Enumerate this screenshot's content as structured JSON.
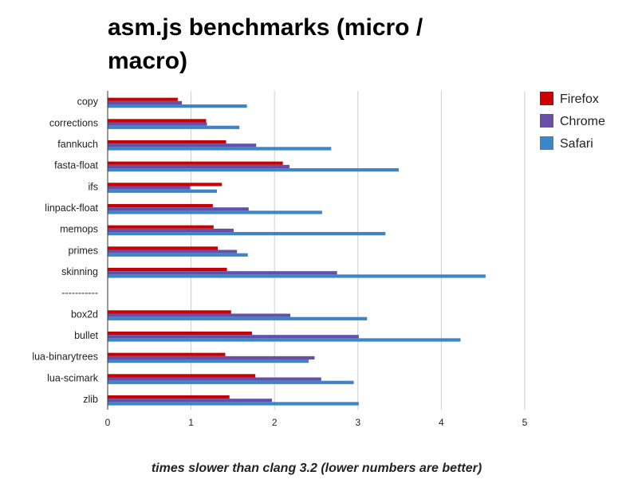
{
  "chart_data": {
    "type": "bar",
    "orientation": "horizontal",
    "title": "asm.js benchmarks (micro / macro)",
    "xlabel": "times slower than clang 3.2 (lower numbers are better)",
    "ylabel": "",
    "xlim": [
      0,
      5
    ],
    "xticks": [
      0,
      1,
      2,
      3,
      4,
      5
    ],
    "grid": true,
    "legend_position": "right",
    "categories": [
      "copy",
      "corrections",
      "fannkuch",
      "fasta-float",
      "ifs",
      "linpack-float",
      "memops",
      "primes",
      "skinning",
      "-----------",
      "box2d",
      "bullet",
      "lua-binarytrees",
      "lua-scimark",
      "zlib"
    ],
    "series": [
      {
        "name": "Firefox",
        "color": "#cc0000",
        "values": [
          0.84,
          1.18,
          1.42,
          2.1,
          1.37,
          1.26,
          1.27,
          1.32,
          1.43,
          null,
          1.48,
          1.73,
          1.41,
          1.77,
          1.46
        ]
      },
      {
        "name": "Chrome",
        "color": "#674ea7",
        "values": [
          0.89,
          1.19,
          1.78,
          2.18,
          0.99,
          1.69,
          1.51,
          1.55,
          2.75,
          null,
          2.19,
          3.01,
          2.48,
          2.56,
          1.97
        ]
      },
      {
        "name": "Safari",
        "color": "#3d85c6",
        "values": [
          1.67,
          1.58,
          2.68,
          3.49,
          1.31,
          2.57,
          3.33,
          1.68,
          4.53,
          null,
          3.11,
          4.23,
          2.41,
          2.95,
          3.01
        ]
      }
    ]
  }
}
